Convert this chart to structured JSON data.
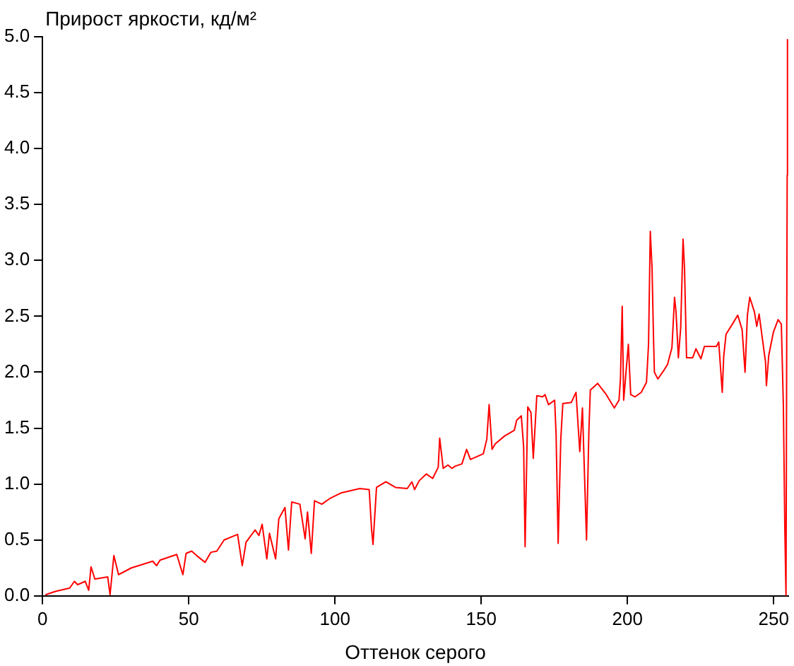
{
  "chart_data": {
    "type": "line",
    "ylabel": "Прирост яркости, кд/м²",
    "xlabel": "Оттенок серого",
    "marker": "none",
    "grid": false,
    "legend": false,
    "xlim": [
      0,
      255
    ],
    "xticks": [
      0,
      50,
      100,
      150,
      200,
      250
    ],
    "ylim": [
      0,
      5
    ],
    "yticks": [
      {
        "value": 0,
        "label": "0.0"
      },
      {
        "value": 0.5,
        "label": "0.5"
      },
      {
        "value": 1,
        "label": "1.0"
      },
      {
        "value": 1.5,
        "label": "1.5"
      },
      {
        "value": 2,
        "label": "2.0"
      },
      {
        "value": 2.5,
        "label": "2.5"
      },
      {
        "value": 3,
        "label": "3.0"
      },
      {
        "value": 3.5,
        "label": "3.5"
      },
      {
        "value": 4,
        "label": "4.0"
      },
      {
        "value": 4.5,
        "label": "4.5"
      },
      {
        "value": 5,
        "label": "5.0"
      }
    ],
    "series": [
      {
        "color": "#ff0000",
        "x": [
          1,
          4.4,
          9.3,
          10.9,
          12,
          14.6,
          15.8,
          16.6,
          17.9,
          22.3,
          23.1,
          24.4,
          26,
          30.4,
          37.7,
          39,
          40.2,
          45.9,
          48,
          49.1,
          51,
          52.7,
          55.6,
          57.6,
          59.6,
          62.1,
          66.7,
          68.3,
          69.6,
          72.7,
          74,
          75.1,
          76.7,
          77.6,
          79.7,
          80.8,
          82.9,
          84.1,
          85.2,
          88,
          89.8,
          90.6,
          91.9,
          93,
          95.5,
          98.2,
          102,
          108.5,
          111.7,
          112.5,
          113,
          114.2,
          117.4,
          120.7,
          124.7,
          126.3,
          127.2,
          128.8,
          131.2,
          133.4,
          135.3,
          135.8,
          137,
          138.6,
          140,
          141.1,
          143.4,
          145,
          146.3,
          150.7,
          151.9,
          152.7,
          153.7,
          154.8,
          158,
          161.3,
          162.1,
          163.7,
          164.5,
          165,
          165.9,
          167,
          167.8,
          169,
          171,
          171.8,
          173,
          175.1,
          175.6,
          176.3,
          177.2,
          177.9,
          180.8,
          182.4,
          183.7,
          184.6,
          186,
          186.8,
          187.3,
          189.8,
          192.5,
          195.5,
          197.1,
          197.6,
          198.2,
          198.7,
          199.5,
          200.3,
          201.1,
          202.6,
          204.7,
          206.5,
          207.2,
          207.8,
          208.4,
          208.9,
          209.2,
          210.4,
          212.5,
          213.7,
          215.2,
          216.1,
          216.6,
          217.4,
          218.2,
          219,
          219.5,
          220.2,
          222.3,
          223.4,
          225.1,
          226.3,
          230.4,
          231.2,
          232.4,
          232.9,
          233.7,
          236.1,
          237.7,
          239.2,
          240.2,
          241,
          241.8,
          243.4,
          244.2,
          245,
          247.2,
          247.5,
          248.3,
          249.9,
          251.5,
          252.6,
          253.3,
          253.8,
          254.2,
          254.6,
          254.7
        ],
        "values": [
          0.01,
          0.04,
          0.07,
          0.13,
          0.1,
          0.13,
          0.05,
          0.26,
          0.15,
          0.17,
          0.01,
          0.36,
          0.19,
          0.25,
          0.31,
          0.27,
          0.32,
          0.37,
          0.19,
          0.38,
          0.4,
          0.36,
          0.3,
          0.39,
          0.4,
          0.5,
          0.55,
          0.27,
          0.48,
          0.59,
          0.54,
          0.64,
          0.33,
          0.56,
          0.33,
          0.69,
          0.79,
          0.41,
          0.84,
          0.82,
          0.51,
          0.75,
          0.38,
          0.85,
          0.82,
          0.87,
          0.92,
          0.96,
          0.95,
          0.6,
          0.46,
          0.97,
          1.02,
          0.97,
          0.96,
          1.02,
          0.95,
          1.03,
          1.09,
          1.05,
          1.15,
          1.41,
          1.14,
          1.17,
          1.14,
          1.16,
          1.18,
          1.31,
          1.22,
          1.27,
          1.4,
          1.71,
          1.31,
          1.36,
          1.43,
          1.48,
          1.57,
          1.61,
          1.33,
          0.44,
          1.69,
          1.64,
          1.23,
          1.79,
          1.78,
          1.8,
          1.71,
          1.75,
          1.44,
          0.47,
          1.4,
          1.72,
          1.73,
          1.82,
          1.29,
          1.68,
          0.5,
          1.47,
          1.84,
          1.9,
          1.81,
          1.68,
          1.75,
          1.94,
          2.59,
          1.75,
          2.0,
          2.25,
          1.8,
          1.78,
          1.82,
          1.91,
          2.25,
          3.26,
          2.93,
          2.31,
          2.0,
          1.94,
          2.02,
          2.07,
          2.22,
          2.67,
          2.54,
          2.13,
          2.4,
          3.19,
          2.93,
          2.13,
          2.13,
          2.21,
          2.12,
          2.23,
          2.23,
          2.27,
          1.82,
          2.14,
          2.34,
          2.44,
          2.51,
          2.38,
          2.0,
          2.51,
          2.67,
          2.54,
          2.41,
          2.52,
          2.09,
          1.88,
          2.15,
          2.36,
          2.47,
          2.43,
          1.7,
          0.6,
          0.0,
          3.76,
          4.98
        ]
      }
    ]
  }
}
